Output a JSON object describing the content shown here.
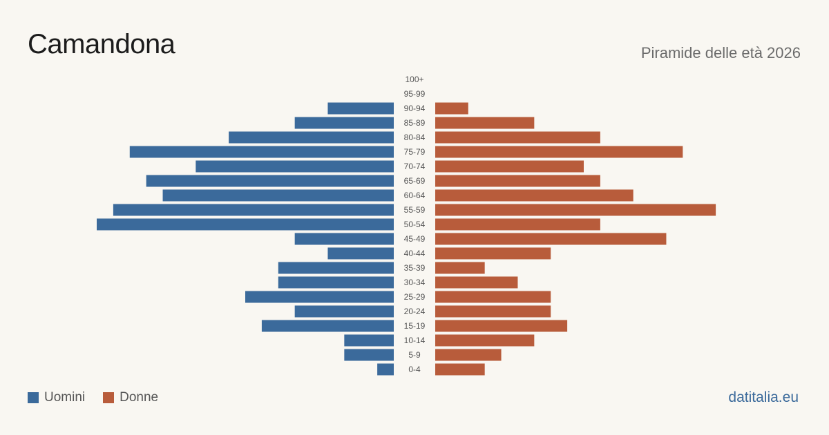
{
  "header": {
    "title": "Camandona",
    "subtitle": "Piramide delle età 2026"
  },
  "footer": {
    "site": "datitalia.eu"
  },
  "colors": {
    "male": "#3b6a9b",
    "female": "#b85c3b",
    "age_label": "#555555",
    "site": "#3b6a9b"
  },
  "chart_data": {
    "type": "bar",
    "orientation": "horizontal-pyramid",
    "categories": [
      "100+",
      "95-99",
      "90-94",
      "85-89",
      "80-84",
      "75-79",
      "70-74",
      "65-69",
      "60-64",
      "55-59",
      "50-54",
      "45-49",
      "40-44",
      "35-39",
      "30-34",
      "25-29",
      "20-24",
      "15-19",
      "10-14",
      "5-9",
      "0-4"
    ],
    "series": [
      {
        "name": "Uomini",
        "values": [
          0,
          0,
          4,
          6,
          10,
          16,
          12,
          15,
          14,
          17,
          18,
          6,
          4,
          7,
          7,
          9,
          6,
          8,
          3,
          3,
          1
        ]
      },
      {
        "name": "Donne",
        "values": [
          0,
          0,
          2,
          6,
          10,
          15,
          9,
          10,
          12,
          17,
          10,
          14,
          7,
          3,
          5,
          7,
          7,
          8,
          6,
          4,
          3
        ]
      }
    ],
    "xlim": [
      0,
      18
    ],
    "legend": "bottom-left",
    "grid": false
  }
}
